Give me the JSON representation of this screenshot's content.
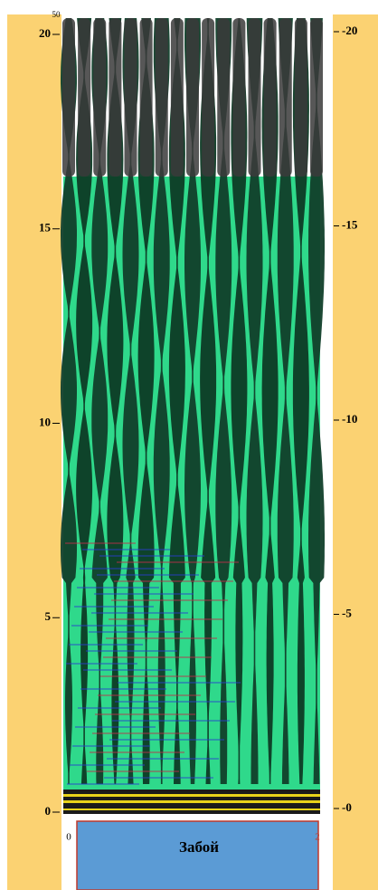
{
  "chart_data": {
    "type": "radargram",
    "ylim": [
      0,
      20
    ],
    "yticks": [
      0,
      5,
      10,
      15,
      20
    ],
    "y2lim": [
      0,
      -20
    ],
    "y2ticks": [
      {
        "value": 0,
        "label": "-0"
      },
      -5,
      -10,
      -15,
      -20
    ],
    "top_label": "50",
    "x_start_label": "0",
    "x_end_label": "2",
    "annotation": "Забой"
  }
}
